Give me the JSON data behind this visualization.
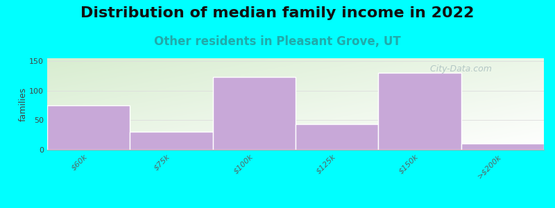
{
  "title": "Distribution of median family income in 2022",
  "subtitle": "Other residents in Pleasant Grove, UT",
  "categories": [
    "$60k",
    "$75k",
    "$100k",
    "$125k",
    "$150k",
    ">$200k"
  ],
  "values": [
    75,
    30,
    123,
    43,
    130,
    10
  ],
  "bar_color": "#C8A8D8",
  "bar_edge_color": "#C8A8D8",
  "background_color": "#00FFFF",
  "plot_bg_top_left": "#D8EDD0",
  "plot_bg_bottom_right": "#FFFFFF",
  "ylabel": "families",
  "ylim": [
    0,
    155
  ],
  "yticks": [
    0,
    50,
    100,
    150
  ],
  "title_fontsize": 16,
  "subtitle_fontsize": 12,
  "subtitle_color": "#20AAAA",
  "watermark": "  City-Data.com",
  "watermark_color": "#AABFBF",
  "title_fontweight": "bold",
  "title_color": "#111111"
}
